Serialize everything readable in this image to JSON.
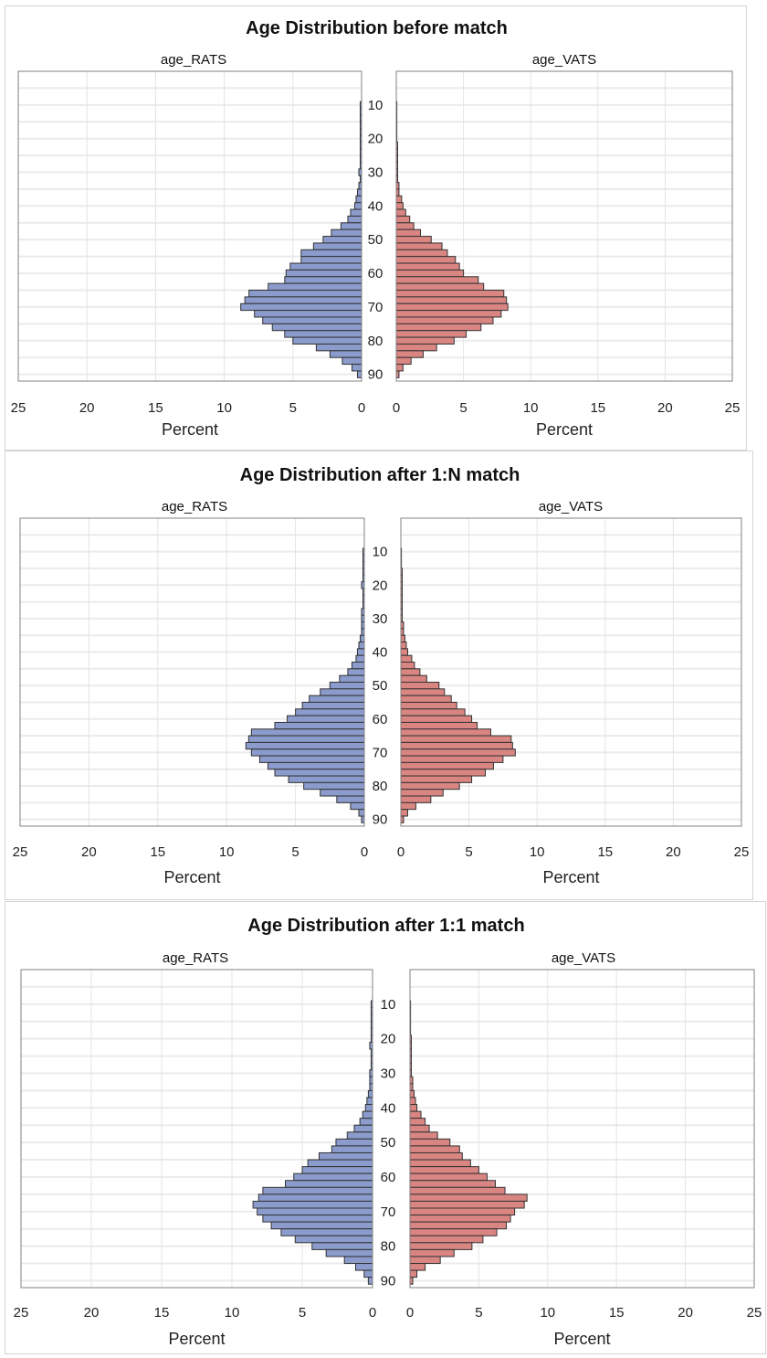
{
  "chart_data": [
    {
      "type": "bar",
      "orientation": "horizontal-butterfly",
      "title": "Age Distribution before match",
      "panels": [
        "age_RATS",
        "age_VATS"
      ],
      "xlabel": "Percent",
      "xlim": [
        0,
        25
      ],
      "x_ticks": [
        25,
        20,
        15,
        10,
        5,
        0
      ],
      "y_ticks": [
        10,
        20,
        30,
        40,
        50,
        60,
        70,
        80,
        90
      ],
      "bins": [
        10,
        12,
        14,
        16,
        18,
        20,
        22,
        24,
        26,
        28,
        30,
        32,
        34,
        36,
        38,
        40,
        42,
        44,
        46,
        48,
        50,
        52,
        54,
        56,
        58,
        60,
        62,
        64,
        66,
        68,
        70,
        72,
        74,
        76,
        78,
        80,
        82,
        84,
        86,
        88,
        90
      ],
      "grid": true,
      "colors": {
        "left": "#8a9bcc",
        "right": "#d98582",
        "edge": "#333333"
      },
      "series": [
        {
          "name": "age_RATS",
          "values": [
            0.1,
            0.1,
            0.1,
            0.1,
            0.1,
            0.1,
            0.1,
            0.1,
            0.1,
            0.1,
            0.2,
            0.1,
            0.2,
            0.3,
            0.4,
            0.5,
            0.8,
            1.0,
            1.5,
            2.2,
            2.8,
            3.5,
            4.4,
            4.4,
            5.2,
            5.5,
            5.6,
            6.8,
            8.2,
            8.5,
            8.8,
            7.8,
            7.2,
            6.5,
            5.6,
            5.0,
            3.3,
            2.3,
            1.4,
            0.7,
            0.3
          ]
        },
        {
          "name": "age_VATS",
          "values": [
            0.0,
            0.0,
            0.0,
            0.0,
            0.0,
            0.0,
            0.1,
            0.1,
            0.1,
            0.1,
            0.1,
            0.1,
            0.2,
            0.2,
            0.4,
            0.5,
            0.7,
            1.0,
            1.3,
            1.8,
            2.6,
            3.4,
            3.8,
            4.4,
            4.7,
            5.0,
            6.1,
            6.5,
            8.0,
            8.2,
            8.3,
            7.8,
            7.2,
            6.3,
            5.2,
            4.3,
            3.0,
            2.0,
            1.1,
            0.5,
            0.2
          ]
        }
      ]
    },
    {
      "type": "bar",
      "orientation": "horizontal-butterfly",
      "title": "Age Distribution after 1:N match",
      "panels": [
        "age_RATS",
        "age_VATS"
      ],
      "xlabel": "Percent",
      "xlim": [
        0,
        25
      ],
      "x_ticks": [
        25,
        20,
        15,
        10,
        5,
        0
      ],
      "y_ticks": [
        10,
        20,
        30,
        40,
        50,
        60,
        70,
        80,
        90
      ],
      "bins": [
        10,
        12,
        14,
        16,
        18,
        20,
        22,
        24,
        26,
        28,
        30,
        32,
        34,
        36,
        38,
        40,
        42,
        44,
        46,
        48,
        50,
        52,
        54,
        56,
        58,
        60,
        62,
        64,
        66,
        68,
        70,
        72,
        74,
        76,
        78,
        80,
        82,
        84,
        86,
        88,
        90
      ],
      "grid": true,
      "colors": {
        "left": "#8a9bcc",
        "right": "#d98582",
        "edge": "#333333"
      },
      "series": [
        {
          "name": "age_RATS",
          "values": [
            0.1,
            0.1,
            0.1,
            0.1,
            0.1,
            0.2,
            0.1,
            0.1,
            0.1,
            0.2,
            0.2,
            0.2,
            0.2,
            0.3,
            0.4,
            0.5,
            0.6,
            0.9,
            1.2,
            1.8,
            2.5,
            3.2,
            4.0,
            4.5,
            5.0,
            5.6,
            6.5,
            8.2,
            8.4,
            8.6,
            8.2,
            7.6,
            7.0,
            6.5,
            5.5,
            4.4,
            3.2,
            2.0,
            1.0,
            0.4,
            0.2
          ]
        },
        {
          "name": "age_VATS",
          "values": [
            0.0,
            0.0,
            0.0,
            0.1,
            0.1,
            0.1,
            0.1,
            0.1,
            0.1,
            0.1,
            0.1,
            0.2,
            0.2,
            0.3,
            0.4,
            0.5,
            0.8,
            1.0,
            1.4,
            1.9,
            2.8,
            3.2,
            3.7,
            4.1,
            4.7,
            5.2,
            5.6,
            6.6,
            8.1,
            8.2,
            8.4,
            7.5,
            6.8,
            6.2,
            5.2,
            4.3,
            3.1,
            2.2,
            1.1,
            0.5,
            0.2
          ]
        }
      ]
    },
    {
      "type": "bar",
      "orientation": "horizontal-butterfly",
      "title": "Age Distribution after 1:1 match",
      "panels": [
        "age_RATS",
        "age_VATS"
      ],
      "xlabel": "Percent",
      "xlim": [
        0,
        25
      ],
      "x_ticks": [
        25,
        20,
        15,
        10,
        5,
        0
      ],
      "y_ticks": [
        10,
        20,
        30,
        40,
        50,
        60,
        70,
        80,
        90
      ],
      "bins": [
        10,
        12,
        14,
        16,
        18,
        20,
        22,
        24,
        26,
        28,
        30,
        32,
        34,
        36,
        38,
        40,
        42,
        44,
        46,
        48,
        50,
        52,
        54,
        56,
        58,
        60,
        62,
        64,
        66,
        68,
        70,
        72,
        74,
        76,
        78,
        80,
        82,
        84,
        86,
        88,
        90
      ],
      "grid": true,
      "colors": {
        "left": "#8a9bcc",
        "right": "#d98582",
        "edge": "#333333"
      },
      "series": [
        {
          "name": "age_RATS",
          "values": [
            0.1,
            0.1,
            0.1,
            0.1,
            0.1,
            0.1,
            0.2,
            0.1,
            0.1,
            0.1,
            0.2,
            0.2,
            0.2,
            0.3,
            0.4,
            0.5,
            0.7,
            0.9,
            1.3,
            1.8,
            2.6,
            2.9,
            3.8,
            4.6,
            5.0,
            5.6,
            6.2,
            7.8,
            8.1,
            8.5,
            8.2,
            7.8,
            7.2,
            6.5,
            5.5,
            4.3,
            3.3,
            2.0,
            1.2,
            0.6,
            0.3
          ]
        },
        {
          "name": "age_VATS",
          "values": [
            0.0,
            0.0,
            0.0,
            0.0,
            0.0,
            0.1,
            0.1,
            0.1,
            0.1,
            0.1,
            0.1,
            0.2,
            0.2,
            0.3,
            0.4,
            0.5,
            0.8,
            1.1,
            1.4,
            2.0,
            2.9,
            3.6,
            3.8,
            4.4,
            5.0,
            5.6,
            6.2,
            6.9,
            8.5,
            8.3,
            7.6,
            7.3,
            7.0,
            6.3,
            5.3,
            4.5,
            3.2,
            2.2,
            1.1,
            0.5,
            0.2
          ]
        }
      ]
    }
  ]
}
